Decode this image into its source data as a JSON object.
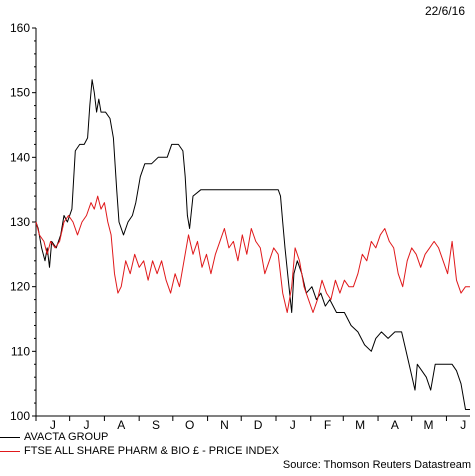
{
  "date_label": "22/6/16",
  "source": "Source: Thomson Reuters Datastream",
  "colors": {
    "avacta": "#000000",
    "ftse": "#e0191b",
    "axis": "#000000"
  },
  "chart_data": {
    "type": "line",
    "title": "",
    "xlabel": "",
    "ylabel": "",
    "ylim": [
      100,
      160
    ],
    "yticks": [
      100,
      110,
      120,
      130,
      140,
      150,
      160
    ],
    "grid": false,
    "legend_position": "bottom-left",
    "x_range": [
      "2015-06-01",
      "2016-06-22"
    ],
    "x_ticks": [
      {
        "label": "J",
        "date": "2015-06-16"
      },
      {
        "label": "J",
        "date": "2015-07-16"
      },
      {
        "label": "A",
        "date": "2015-08-16"
      },
      {
        "label": "S",
        "date": "2015-09-16"
      },
      {
        "label": "O",
        "date": "2015-10-16"
      },
      {
        "label": "N",
        "date": "2015-11-16"
      },
      {
        "label": "D",
        "date": "2015-12-16"
      },
      {
        "label": "J",
        "date": "2016-01-16"
      },
      {
        "label": "F",
        "date": "2016-02-16"
      },
      {
        "label": "M",
        "date": "2016-03-16"
      },
      {
        "label": "A",
        "date": "2016-04-16"
      },
      {
        "label": "M",
        "date": "2016-05-16"
      },
      {
        "label": "J",
        "date": "2016-06-16"
      }
    ],
    "series": [
      {
        "name": "AVACTA GROUP",
        "points": [
          [
            "2015-06-01",
            130
          ],
          [
            "2015-06-03",
            129
          ],
          [
            "2015-06-06",
            126
          ],
          [
            "2015-06-09",
            124
          ],
          [
            "2015-06-11",
            126
          ],
          [
            "2015-06-13",
            123
          ],
          [
            "2015-06-15",
            127
          ],
          [
            "2015-06-19",
            126
          ],
          [
            "2015-06-23",
            128
          ],
          [
            "2015-06-26",
            131
          ],
          [
            "2015-06-29",
            130
          ],
          [
            "2015-07-03",
            132
          ],
          [
            "2015-07-06",
            141
          ],
          [
            "2015-07-10",
            142
          ],
          [
            "2015-07-14",
            142
          ],
          [
            "2015-07-17",
            143
          ],
          [
            "2015-07-19",
            148
          ],
          [
            "2015-07-21",
            152
          ],
          [
            "2015-07-23",
            150
          ],
          [
            "2015-07-25",
            147
          ],
          [
            "2015-07-27",
            149
          ],
          [
            "2015-07-29",
            147
          ],
          [
            "2015-08-02",
            147
          ],
          [
            "2015-08-06",
            146
          ],
          [
            "2015-08-09",
            143
          ],
          [
            "2015-08-12",
            135
          ],
          [
            "2015-08-14",
            130
          ],
          [
            "2015-08-18",
            128
          ],
          [
            "2015-08-22",
            130
          ],
          [
            "2015-08-26",
            131
          ],
          [
            "2015-08-29",
            133
          ],
          [
            "2015-09-02",
            137
          ],
          [
            "2015-09-06",
            139
          ],
          [
            "2015-09-12",
            139
          ],
          [
            "2015-09-18",
            140
          ],
          [
            "2015-09-26",
            140
          ],
          [
            "2015-09-30",
            142
          ],
          [
            "2015-10-06",
            142
          ],
          [
            "2015-10-10",
            141
          ],
          [
            "2015-10-12",
            137
          ],
          [
            "2015-10-14",
            131
          ],
          [
            "2015-10-16",
            129
          ],
          [
            "2015-10-19",
            134
          ],
          [
            "2015-10-26",
            135
          ],
          [
            "2015-11-10",
            135
          ],
          [
            "2015-11-30",
            135
          ],
          [
            "2015-12-20",
            135
          ],
          [
            "2016-01-03",
            135
          ],
          [
            "2016-01-05",
            134
          ],
          [
            "2016-01-07",
            130
          ],
          [
            "2016-01-09",
            126
          ],
          [
            "2016-01-12",
            121
          ],
          [
            "2016-01-15",
            116
          ],
          [
            "2016-01-17",
            122
          ],
          [
            "2016-01-20",
            124
          ],
          [
            "2016-01-24",
            122
          ],
          [
            "2016-01-28",
            119
          ],
          [
            "2016-02-02",
            120
          ],
          [
            "2016-02-06",
            118
          ],
          [
            "2016-02-10",
            119
          ],
          [
            "2016-02-14",
            117
          ],
          [
            "2016-02-18",
            118
          ],
          [
            "2016-02-24",
            116
          ],
          [
            "2016-03-02",
            116
          ],
          [
            "2016-03-08",
            114
          ],
          [
            "2016-03-14",
            113
          ],
          [
            "2016-03-20",
            111
          ],
          [
            "2016-03-26",
            110
          ],
          [
            "2016-03-30",
            112
          ],
          [
            "2016-04-04",
            113
          ],
          [
            "2016-04-10",
            112
          ],
          [
            "2016-04-16",
            113
          ],
          [
            "2016-04-22",
            113
          ],
          [
            "2016-04-26",
            110
          ],
          [
            "2016-04-30",
            107
          ],
          [
            "2016-05-04",
            104
          ],
          [
            "2016-05-06",
            108
          ],
          [
            "2016-05-10",
            107
          ],
          [
            "2016-05-14",
            106
          ],
          [
            "2016-05-18",
            104
          ],
          [
            "2016-05-22",
            108
          ],
          [
            "2016-05-30",
            108
          ],
          [
            "2016-06-06",
            108
          ],
          [
            "2016-06-10",
            107
          ],
          [
            "2016-06-14",
            105
          ],
          [
            "2016-06-18",
            101
          ],
          [
            "2016-06-22",
            101
          ]
        ]
      },
      {
        "name": "FTSE ALL SHARE PHARM & BIO £ - PRICE INDEX",
        "points": [
          [
            "2015-06-01",
            130
          ],
          [
            "2015-06-04",
            128
          ],
          [
            "2015-06-08",
            127
          ],
          [
            "2015-06-11",
            125
          ],
          [
            "2015-06-14",
            127
          ],
          [
            "2015-06-18",
            126
          ],
          [
            "2015-06-22",
            127
          ],
          [
            "2015-06-26",
            130
          ],
          [
            "2015-06-30",
            131
          ],
          [
            "2015-07-04",
            130
          ],
          [
            "2015-07-08",
            128
          ],
          [
            "2015-07-12",
            130
          ],
          [
            "2015-07-16",
            131
          ],
          [
            "2015-07-20",
            133
          ],
          [
            "2015-07-23",
            132
          ],
          [
            "2015-07-26",
            134
          ],
          [
            "2015-07-29",
            132
          ],
          [
            "2015-08-01",
            133
          ],
          [
            "2015-08-04",
            130
          ],
          [
            "2015-08-07",
            128
          ],
          [
            "2015-08-10",
            122
          ],
          [
            "2015-08-13",
            119
          ],
          [
            "2015-08-16",
            120
          ],
          [
            "2015-08-20",
            124
          ],
          [
            "2015-08-24",
            122
          ],
          [
            "2015-08-28",
            125
          ],
          [
            "2015-09-01",
            123
          ],
          [
            "2015-09-05",
            124
          ],
          [
            "2015-09-09",
            121
          ],
          [
            "2015-09-13",
            124
          ],
          [
            "2015-09-17",
            122
          ],
          [
            "2015-09-21",
            124
          ],
          [
            "2015-09-25",
            121
          ],
          [
            "2015-09-29",
            119
          ],
          [
            "2015-10-03",
            122
          ],
          [
            "2015-10-07",
            120
          ],
          [
            "2015-10-11",
            124
          ],
          [
            "2015-10-15",
            128
          ],
          [
            "2015-10-19",
            125
          ],
          [
            "2015-10-23",
            127
          ],
          [
            "2015-10-27",
            123
          ],
          [
            "2015-10-31",
            125
          ],
          [
            "2015-11-04",
            122
          ],
          [
            "2015-11-08",
            125
          ],
          [
            "2015-11-12",
            127
          ],
          [
            "2015-11-16",
            129
          ],
          [
            "2015-11-20",
            126
          ],
          [
            "2015-11-24",
            127
          ],
          [
            "2015-11-28",
            124
          ],
          [
            "2015-12-02",
            128
          ],
          [
            "2015-12-06",
            125
          ],
          [
            "2015-12-10",
            129
          ],
          [
            "2015-12-14",
            127
          ],
          [
            "2015-12-18",
            126
          ],
          [
            "2015-12-22",
            122
          ],
          [
            "2015-12-26",
            124
          ],
          [
            "2015-12-30",
            126
          ],
          [
            "2016-01-03",
            125
          ],
          [
            "2016-01-07",
            119
          ],
          [
            "2016-01-11",
            116
          ],
          [
            "2016-01-15",
            120
          ],
          [
            "2016-01-18",
            126
          ],
          [
            "2016-01-22",
            124
          ],
          [
            "2016-01-26",
            120
          ],
          [
            "2016-01-30",
            118
          ],
          [
            "2016-02-03",
            116
          ],
          [
            "2016-02-07",
            118
          ],
          [
            "2016-02-11",
            121
          ],
          [
            "2016-02-15",
            119
          ],
          [
            "2016-02-19",
            118
          ],
          [
            "2016-02-23",
            121
          ],
          [
            "2016-02-27",
            119
          ],
          [
            "2016-03-02",
            121
          ],
          [
            "2016-03-06",
            120
          ],
          [
            "2016-03-10",
            120
          ],
          [
            "2016-03-14",
            122
          ],
          [
            "2016-03-18",
            125
          ],
          [
            "2016-03-22",
            124
          ],
          [
            "2016-03-26",
            127
          ],
          [
            "2016-03-30",
            126
          ],
          [
            "2016-04-03",
            128
          ],
          [
            "2016-04-07",
            129
          ],
          [
            "2016-04-11",
            127
          ],
          [
            "2016-04-15",
            126
          ],
          [
            "2016-04-19",
            122
          ],
          [
            "2016-04-23",
            120
          ],
          [
            "2016-04-27",
            124
          ],
          [
            "2016-05-01",
            126
          ],
          [
            "2016-05-05",
            125
          ],
          [
            "2016-05-09",
            123
          ],
          [
            "2016-05-13",
            125
          ],
          [
            "2016-05-17",
            126
          ],
          [
            "2016-05-21",
            127
          ],
          [
            "2016-05-25",
            126
          ],
          [
            "2016-05-29",
            124
          ],
          [
            "2016-06-02",
            122
          ],
          [
            "2016-06-06",
            127
          ],
          [
            "2016-06-10",
            121
          ],
          [
            "2016-06-14",
            119
          ],
          [
            "2016-06-18",
            120
          ],
          [
            "2016-06-22",
            120
          ]
        ]
      }
    ]
  }
}
